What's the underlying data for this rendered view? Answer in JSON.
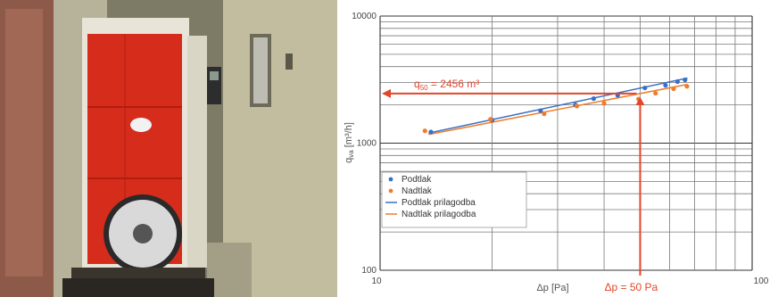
{
  "chart_data": {
    "type": "scatter",
    "xscale": "log",
    "yscale": "log",
    "xlim": [
      10,
      100
    ],
    "ylim": [
      100,
      10000
    ],
    "xlabel": "Δp [Pa]",
    "ylabel": "q_va [m³/h]",
    "ylabel_main": "q",
    "ylabel_sub": "va",
    "ylabel_rest": " [m³/h]",
    "tick_labels": {
      "x0": "10",
      "x1": "100",
      "y0": "100",
      "y1": "1000",
      "y2": "10000"
    },
    "grid": true,
    "legend_position": "bottom-left",
    "series": [
      {
        "name": "Podtlak",
        "kind": "points",
        "color": "#3a6fc4",
        "x": [
          13.7,
          20.0,
          27.0,
          33.5,
          37.5,
          43.5,
          51.5,
          58.5,
          63.0,
          66.0
        ],
        "y": [
          1225,
          1520,
          1800,
          2000,
          2240,
          2380,
          2720,
          2850,
          3050,
          3150
        ]
      },
      {
        "name": "Nadtlak",
        "kind": "points",
        "color": "#ef7d2d",
        "x": [
          13.2,
          19.8,
          27.6,
          33.8,
          40.0,
          49.5,
          55.0,
          61.5,
          66.8
        ],
        "y": [
          1250,
          1540,
          1700,
          1960,
          2060,
          2220,
          2470,
          2680,
          2800
        ]
      },
      {
        "name": "Podtlak prilagodba",
        "kind": "line",
        "color": "#3a6fc4",
        "x": [
          13.5,
          67.0
        ],
        "y": [
          1200,
          3250
        ]
      },
      {
        "name": "Nadtlak prilagodba",
        "kind": "line",
        "color": "#ef7d2d",
        "x": [
          13.5,
          67.0
        ],
        "y": [
          1170,
          2900
        ]
      }
    ],
    "annotations": {
      "q_main": "q",
      "q_sub": "50",
      "q_rest": " = 2456 m³",
      "q_value": 2456,
      "dp_label": "Δp = 50 Pa",
      "dp_value": 50,
      "color": "#e2462a"
    }
  }
}
